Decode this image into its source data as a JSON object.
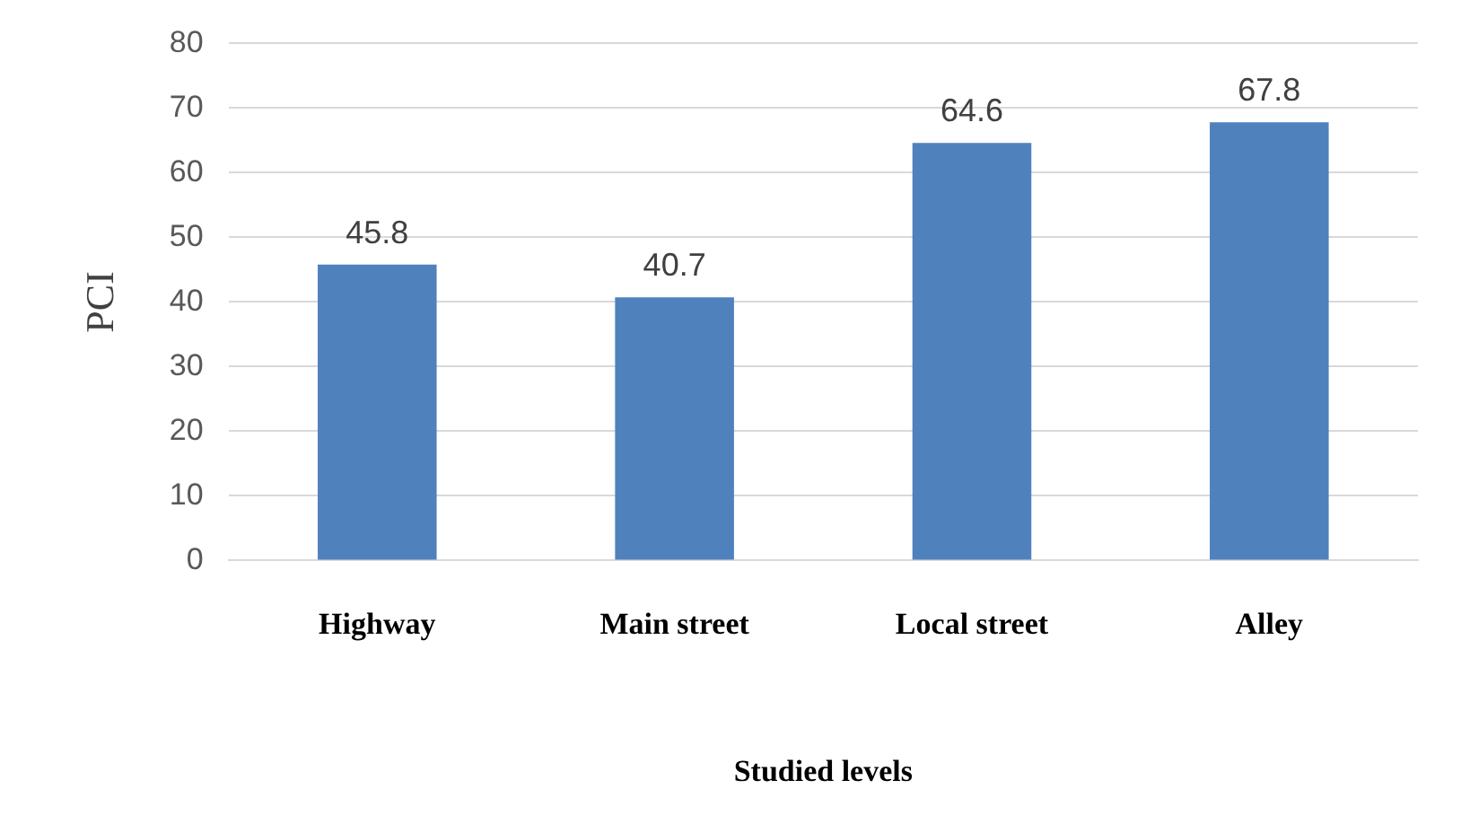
{
  "chart_data": {
    "type": "bar",
    "xlabel": "Studied levels",
    "ylabel": "PCI",
    "categories": [
      "Highway",
      "Main street",
      "Local street",
      "Alley"
    ],
    "values": [
      45.8,
      40.7,
      64.6,
      67.8
    ],
    "color": "#4f81bd",
    "ylim": [
      0,
      80
    ],
    "yticks": [
      0,
      10,
      20,
      30,
      40,
      50,
      60,
      70,
      80
    ],
    "grid": "y",
    "data_labels": true
  }
}
